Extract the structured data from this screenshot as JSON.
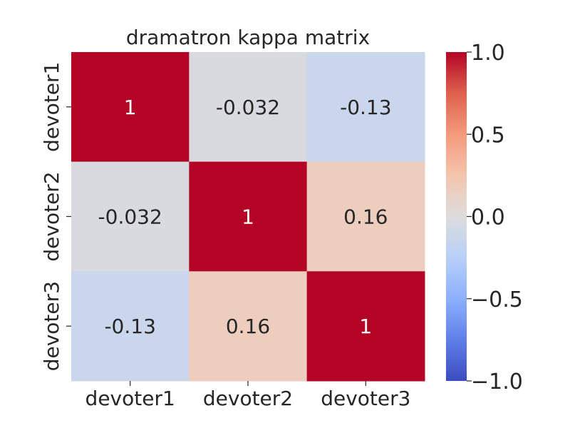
{
  "chart_data": {
    "type": "heatmap",
    "title": "dramatron kappa matrix",
    "x_labels": [
      "devoter1",
      "devoter2",
      "devoter3"
    ],
    "y_labels": [
      "devoter1",
      "devoter2",
      "devoter3"
    ],
    "values": [
      [
        1,
        -0.032,
        -0.13
      ],
      [
        -0.032,
        1,
        0.16
      ],
      [
        -0.13,
        0.16,
        1
      ]
    ],
    "cell_labels": [
      [
        "1",
        "-0.032",
        "-0.13"
      ],
      [
        "-0.032",
        "1",
        "0.16"
      ],
      [
        "-0.13",
        "0.16",
        "1"
      ]
    ],
    "colormap": "coolwarm",
    "vmin": -1.0,
    "vmax": 1.0,
    "colorbar_ticks": [
      1.0,
      0.5,
      0.0,
      -0.5,
      -1.0
    ],
    "colorbar_tick_labels": [
      "1.0",
      "0.5",
      "0.0",
      "−0.5",
      "−1.0"
    ]
  }
}
